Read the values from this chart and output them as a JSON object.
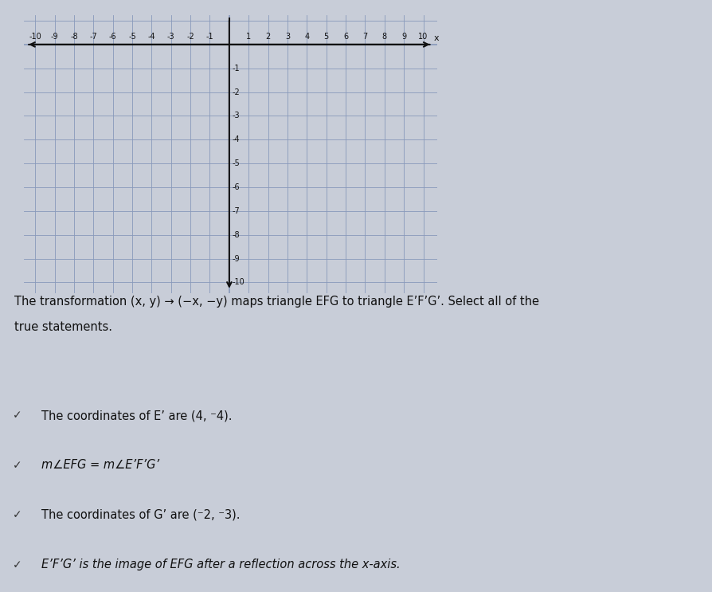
{
  "page_bg": "#c8cdd8",
  "grid_bg": "#ffffff",
  "right_bg": "#d8dce6",
  "x_min": -10,
  "x_max": 10,
  "y_min": -10,
  "y_max": 1,
  "statements": [
    {
      "text": "The coordinates of E’ are (4, ⁻4).",
      "selected": true,
      "italic": false
    },
    {
      "text": "m∠EFG = m∠E’F’G’",
      "selected": true,
      "italic": true
    },
    {
      "text": "The coordinates of G’ are (⁻2, ⁻3).",
      "selected": true,
      "italic": false
    },
    {
      "text": "E’F’G’ is the image of EFG after a reflection across the x-axis.",
      "selected": true,
      "italic": true
    }
  ],
  "title_line1": "The transformation (x, y) → (−x, −y) maps triangle EFG to triangle E’F’G’. Select all of the",
  "title_line2": "true statements.",
  "selected_bar_color": "#6ab8c8",
  "box_bg": "#eaecf2",
  "box_border": "#8899bb",
  "check_color": "#444444",
  "text_color": "#111111",
  "grid_line_color": "#8899bb",
  "axis_color": "#111111",
  "tick_color": "#111111"
}
